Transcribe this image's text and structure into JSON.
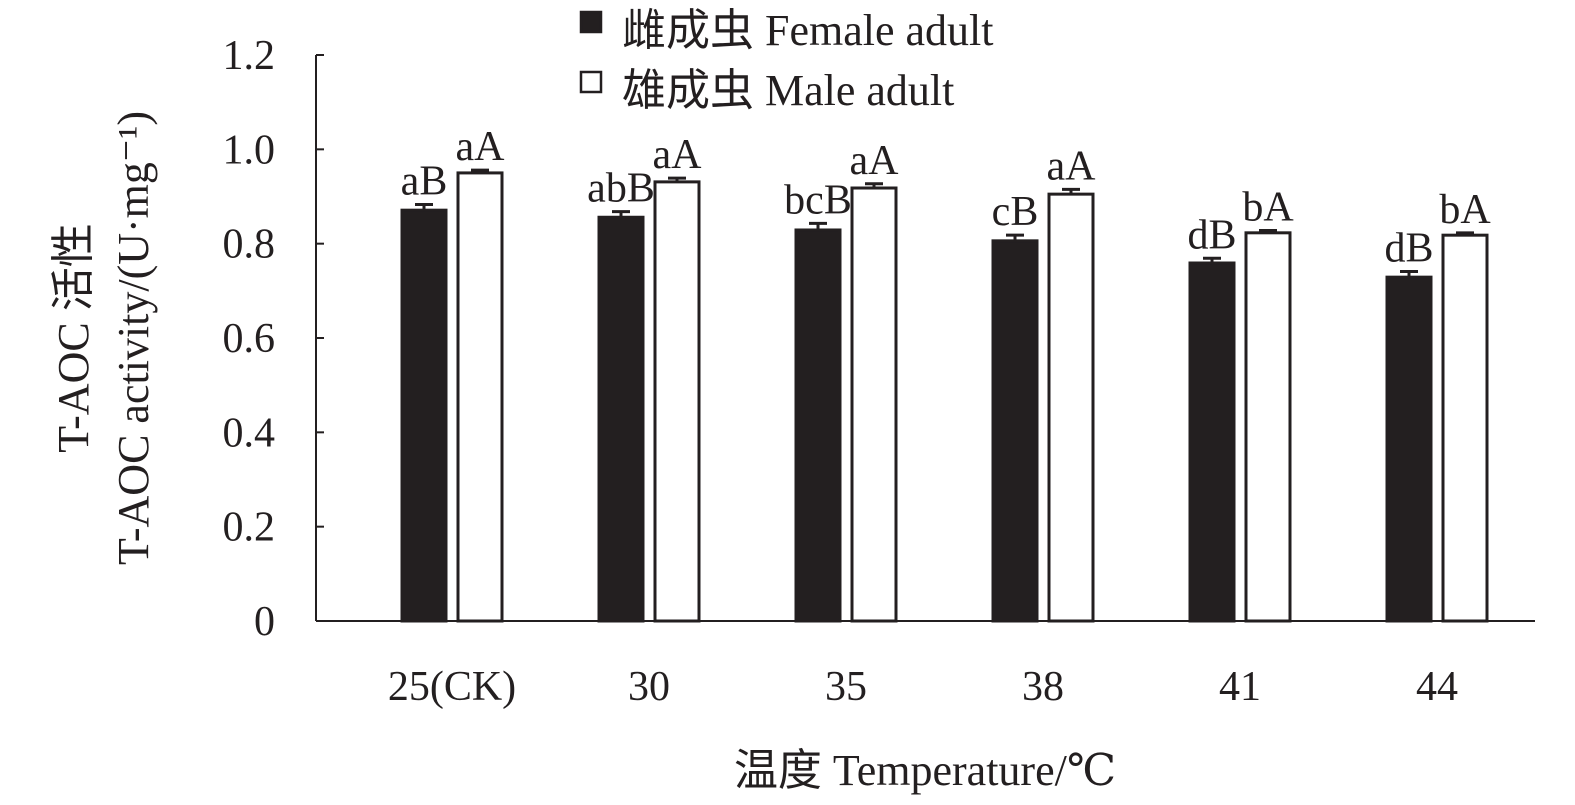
{
  "chart_data": {
    "type": "bar",
    "title": "",
    "xlabel": "温度 Temperature/℃",
    "ylabel_lines": [
      "T-AOC 活性",
      "T-AOC activity/(U·mg⁻¹)"
    ],
    "categories": [
      "25(CK)",
      "30",
      "35",
      "38",
      "41",
      "44"
    ],
    "ylim": [
      0,
      1.2
    ],
    "yticks": [
      "0",
      "0.2",
      "0.4",
      "0.6",
      "0.8",
      "1.0",
      "1.2"
    ],
    "ytick_values": [
      0,
      0.2,
      0.4,
      0.6,
      0.8,
      1.0,
      1.2
    ],
    "grid": false,
    "legend_position": "top-center",
    "series": [
      {
        "name": "雌成虫 Female adult",
        "color": "#231f20",
        "values": [
          0.871,
          0.856,
          0.829,
          0.806,
          0.759,
          0.729
        ],
        "errors": [
          0.012,
          0.012,
          0.014,
          0.012,
          0.01,
          0.012
        ],
        "labels": [
          "aB",
          "abB",
          "bcB",
          "cB",
          "dB",
          "dB"
        ]
      },
      {
        "name": "雄成虫 Male adult",
        "color": "#ffffff",
        "values": [
          0.95,
          0.931,
          0.918,
          0.905,
          0.823,
          0.818
        ],
        "errors": [
          0.006,
          0.008,
          0.009,
          0.01,
          0.005,
          0.005
        ],
        "labels": [
          "aA",
          "aA",
          "aA",
          "aA",
          "bA",
          "bA"
        ]
      }
    ]
  }
}
